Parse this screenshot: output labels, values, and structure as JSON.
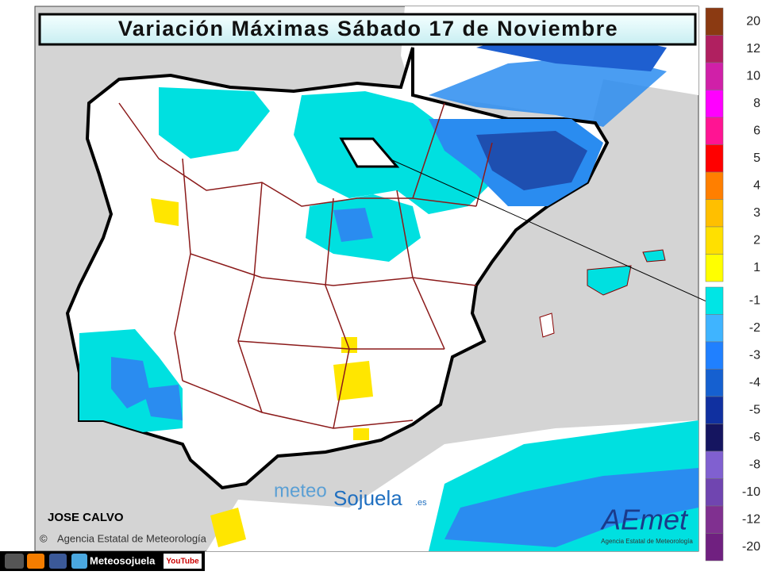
{
  "header": {
    "title": "Variación Máximas Sábado 17 de Noviembre"
  },
  "legend": {
    "positive": [
      {
        "label": "20",
        "color": "#8b3a12"
      },
      {
        "label": "12",
        "color": "#b02060"
      },
      {
        "label": "10",
        "color": "#d020a8"
      },
      {
        "label": "8",
        "color": "#ff00ff"
      },
      {
        "label": "6",
        "color": "#ff1493"
      },
      {
        "label": "5",
        "color": "#ff0000"
      },
      {
        "label": "4",
        "color": "#ff7f00"
      },
      {
        "label": "3",
        "color": "#ffbf00"
      },
      {
        "label": "2",
        "color": "#ffe000"
      },
      {
        "label": "1",
        "color": "#ffff00"
      }
    ],
    "negative": [
      {
        "label": "-1",
        "color": "#00e5e5"
      },
      {
        "label": "-2",
        "color": "#3fb4ff"
      },
      {
        "label": "-3",
        "color": "#2080ff"
      },
      {
        "label": "-4",
        "color": "#1560d0"
      },
      {
        "label": "-5",
        "color": "#1030a0"
      },
      {
        "label": "-6",
        "color": "#151560"
      },
      {
        "label": "-8",
        "color": "#8060d0"
      },
      {
        "label": "-10",
        "color": "#7045b0"
      },
      {
        "label": "-12",
        "color": "#803090"
      },
      {
        "label": "-20",
        "color": "#702080"
      }
    ]
  },
  "author": "JOSE CALVO",
  "credit": "Agencia Estatal de Meteorología",
  "watermark": {
    "part1": "meteo",
    "part2": "Sojuela",
    "suffix": ".es"
  },
  "logo": {
    "name": "AEmet",
    "caption": "Agencia Estatal de Meteorología"
  },
  "footer": {
    "handle": "Meteosojuela",
    "youtube": "YouTube"
  }
}
